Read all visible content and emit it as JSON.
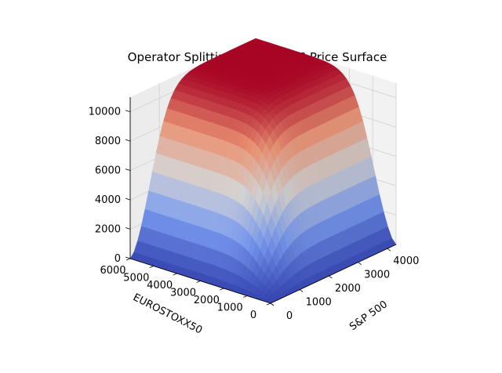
{
  "chart_data": {
    "type": "surface3d",
    "title": "Operator Splitting Method ELS Price Surface",
    "xlabel": "S&P 500",
    "ylabel": "EUROSTOXX50",
    "zlabel": "",
    "x_ticks": [
      "0",
      "1000",
      "2000",
      "3000",
      "4000"
    ],
    "y_ticks": [
      "0",
      "1000",
      "2000",
      "3000",
      "4000",
      "5000",
      "6000"
    ],
    "z_ticks": [
      "0",
      "2000",
      "4000",
      "6000",
      "8000",
      "10000"
    ],
    "xlim": [
      0,
      4300
    ],
    "ylim": [
      0,
      6000
    ],
    "zlim": [
      0,
      11000
    ],
    "colormap": "coolwarm",
    "grid": true,
    "z_peak": 11000,
    "surface_samples": [
      {
        "x": 0,
        "y": 0,
        "z": 0
      },
      {
        "x": 500,
        "y": 500,
        "z": 1500
      },
      {
        "x": 1000,
        "y": 1000,
        "z": 4500
      },
      {
        "x": 1500,
        "y": 1500,
        "z": 7500
      },
      {
        "x": 2000,
        "y": 2500,
        "z": 9800
      },
      {
        "x": 3000,
        "y": 4000,
        "z": 10800
      },
      {
        "x": 4300,
        "y": 6000,
        "z": 11000
      }
    ],
    "pane_colors": [
      "#f2f2f2",
      "#e6e6e6",
      "#ececec"
    ],
    "grid_color": "#d0d0d0"
  }
}
